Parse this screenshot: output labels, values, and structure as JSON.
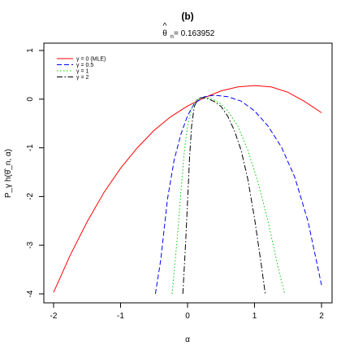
{
  "chart_data": {
    "type": "line",
    "title": "(b)",
    "subtitle": {
      "symbol": "θ",
      "hat": "^",
      "subscript": "n",
      "equals_text": " = 0.163952"
    },
    "xlabel": "α",
    "ylabel": "P_γ h(θ̂_n, α)",
    "xlim": [
      -2,
      2
    ],
    "ylim": [
      -4,
      1
    ],
    "xticks": [
      {
        "value": -2,
        "label": "-2"
      },
      {
        "value": -1,
        "label": "-1"
      },
      {
        "value": 0,
        "label": "0"
      },
      {
        "value": 1,
        "label": "1"
      },
      {
        "value": 2,
        "label": "2"
      }
    ],
    "yticks": [
      {
        "value": -4,
        "label": "-4"
      },
      {
        "value": -3,
        "label": "-3"
      },
      {
        "value": -2,
        "label": "-2"
      },
      {
        "value": -1,
        "label": "-1"
      },
      {
        "value": 0,
        "label": "0"
      },
      {
        "value": 1,
        "label": "1"
      }
    ],
    "grid": false,
    "legend_position": "top-left",
    "series": [
      {
        "name": "γ = 0 (MLE)",
        "color": "#ff0000",
        "dash": "solid",
        "x": [
          -2,
          -1.75,
          -1.5,
          -1.25,
          -1,
          -0.75,
          -0.5,
          -0.25,
          0,
          0.25,
          0.5,
          0.75,
          1,
          1.25,
          1.5,
          1.75,
          2
        ],
        "y": [
          -3.97,
          -3.2,
          -2.52,
          -1.92,
          -1.42,
          -1.0,
          -0.64,
          -0.36,
          -0.14,
          0.03,
          0.17,
          0.25,
          0.28,
          0.25,
          0.14,
          -0.05,
          -0.28
        ]
      },
      {
        "name": "γ = 0.5",
        "color": "#0000ff",
        "dash": "dashed",
        "x": [
          -0.48,
          -0.4,
          -0.3,
          -0.2,
          -0.1,
          0,
          0.1,
          0.25,
          0.4,
          0.6,
          0.8,
          1.0,
          1.2,
          1.4,
          1.6,
          1.8,
          2.0
        ],
        "y": [
          -4.0,
          -3.3,
          -2.05,
          -1.25,
          -0.72,
          -0.34,
          -0.09,
          0.05,
          0.08,
          0.05,
          -0.04,
          -0.24,
          -0.55,
          -0.98,
          -1.6,
          -2.52,
          -3.82
        ]
      },
      {
        "name": "γ = 1",
        "color": "#00cc00",
        "dash": "dotted",
        "x": [
          -0.23,
          -0.15,
          -0.1,
          -0.05,
          0,
          0.05,
          0.1,
          0.2,
          0.3,
          0.4,
          0.5,
          0.6,
          0.75,
          0.9,
          1.05,
          1.2,
          1.35,
          1.45
        ],
        "y": [
          -4.0,
          -2.8,
          -1.9,
          -1.1,
          -0.55,
          -0.25,
          -0.05,
          0.03,
          0.03,
          -0.02,
          -0.1,
          -0.24,
          -0.55,
          -1.05,
          -1.7,
          -2.5,
          -3.45,
          -4.0
        ]
      },
      {
        "name": "γ = 2",
        "color": "#000000",
        "dash": "dashdot",
        "x": [
          -0.07,
          -0.03,
          0,
          0.03,
          0.06,
          0.1,
          0.15,
          0.2,
          0.3,
          0.4,
          0.5,
          0.6,
          0.7,
          0.8,
          0.9,
          1.0,
          1.1,
          1.16
        ],
        "y": [
          -4.0,
          -3.0,
          -2.1,
          -1.2,
          -0.55,
          -0.15,
          0.0,
          0.03,
          0.01,
          -0.05,
          -0.15,
          -0.35,
          -0.65,
          -1.05,
          -1.65,
          -2.45,
          -3.4,
          -4.0
        ]
      }
    ]
  }
}
